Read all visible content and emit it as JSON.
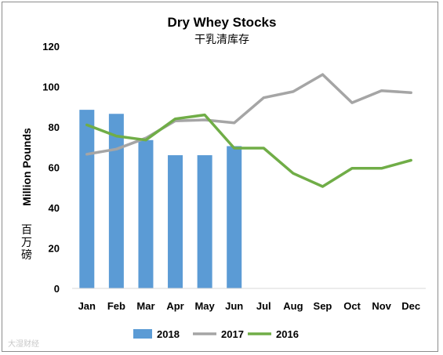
{
  "chart_data": {
    "type": "bar+line",
    "title": "Dry Whey Stocks",
    "subtitle": "干乳清库存",
    "ylabel": "Million Pounds",
    "ylabel_cn": "百万磅",
    "ylim": [
      0,
      120
    ],
    "yticks": [
      "0",
      "20",
      "40",
      "60",
      "80",
      "100",
      "120"
    ],
    "categories": [
      "Jan",
      "Feb",
      "Mar",
      "Apr",
      "May",
      "Jun",
      "Jul",
      "Aug",
      "Sep",
      "Oct",
      "Nov",
      "Dec"
    ],
    "grid": false,
    "legend_position": "bottom",
    "series": [
      {
        "name": "2018",
        "type": "bar",
        "color": "#5b9bd5",
        "values": [
          88.5,
          86.5,
          73.5,
          66,
          66,
          70.5,
          null,
          null,
          null,
          null,
          null,
          null
        ]
      },
      {
        "name": "2017",
        "type": "line",
        "color": "#a5a5a5",
        "values": [
          66.5,
          69,
          74.5,
          83,
          83.5,
          82,
          94.5,
          97.5,
          106,
          92,
          98,
          97
        ]
      },
      {
        "name": "2016",
        "type": "line",
        "color": "#70ad47",
        "values": [
          81,
          75.5,
          73.5,
          84,
          86,
          69.5,
          69.5,
          57,
          50.5,
          59.5,
          59.5,
          63.5
        ]
      }
    ]
  },
  "watermark": "大湿财经"
}
